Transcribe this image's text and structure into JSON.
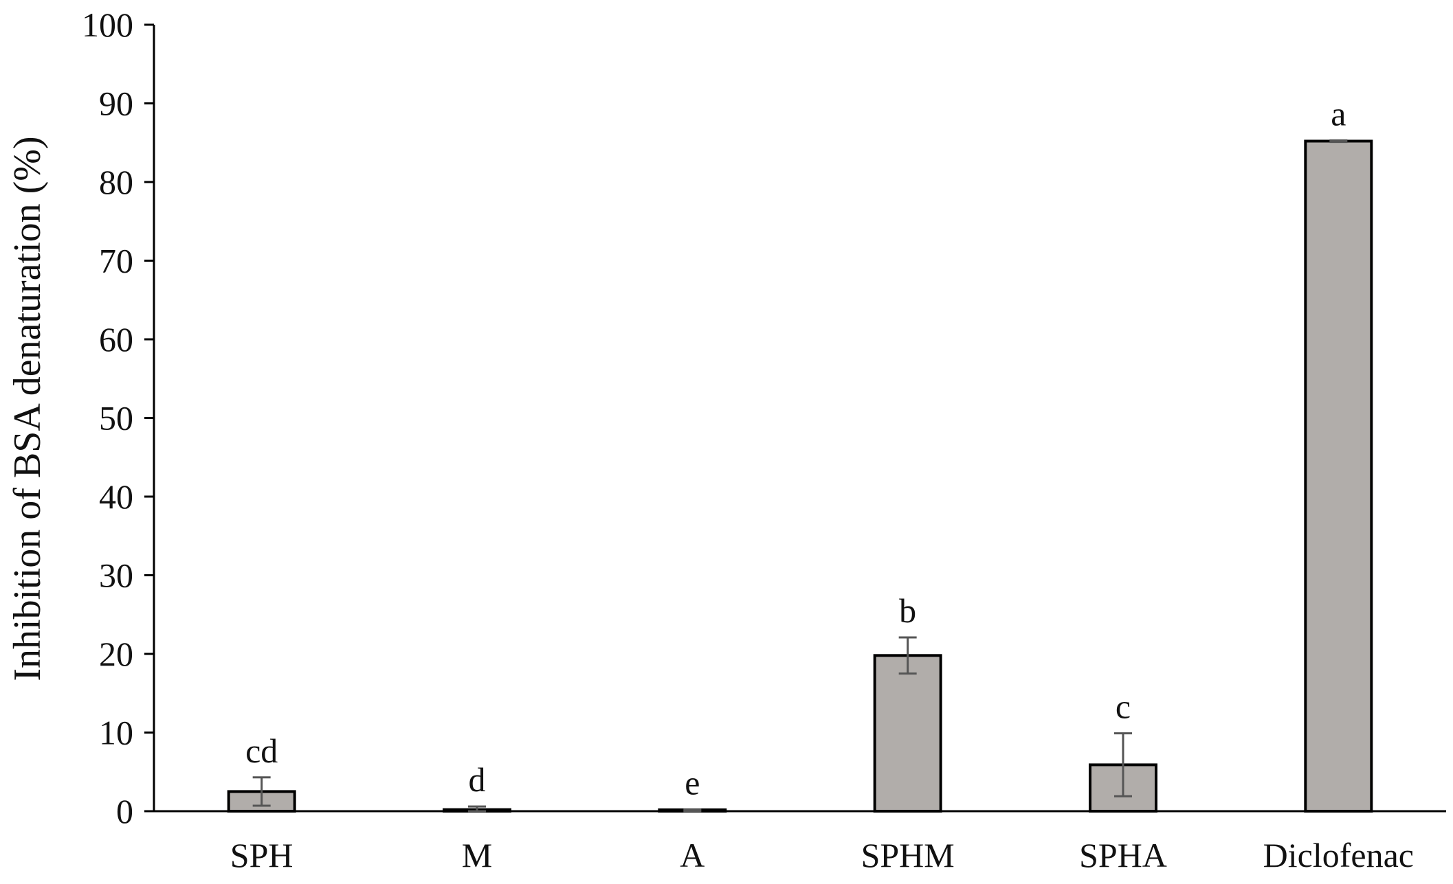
{
  "chart_data": {
    "type": "bar",
    "title": "",
    "xlabel": "",
    "ylabel": "Inhibition of BSA denaturation (%)",
    "ylim": [
      0,
      100
    ],
    "yticks": [
      0,
      10,
      20,
      30,
      40,
      50,
      60,
      70,
      80,
      90,
      100
    ],
    "categories": [
      "SPH",
      "M",
      "A",
      "SPHM",
      "SPHA",
      "Diclofenac"
    ],
    "values": [
      2.5,
      0.2,
      0.1,
      19.8,
      5.9,
      85.2
    ],
    "errors": [
      1.8,
      0.4,
      0.1,
      2.3,
      4.0,
      0.1
    ],
    "significance": [
      "cd",
      "d",
      "e",
      "b",
      "c",
      "a"
    ],
    "grid": false,
    "legend": "none",
    "colors": {
      "bar_fill": "#b1adaa",
      "bar_edge": "#000000",
      "error_bar": "#555555",
      "axis": "#000000"
    }
  }
}
